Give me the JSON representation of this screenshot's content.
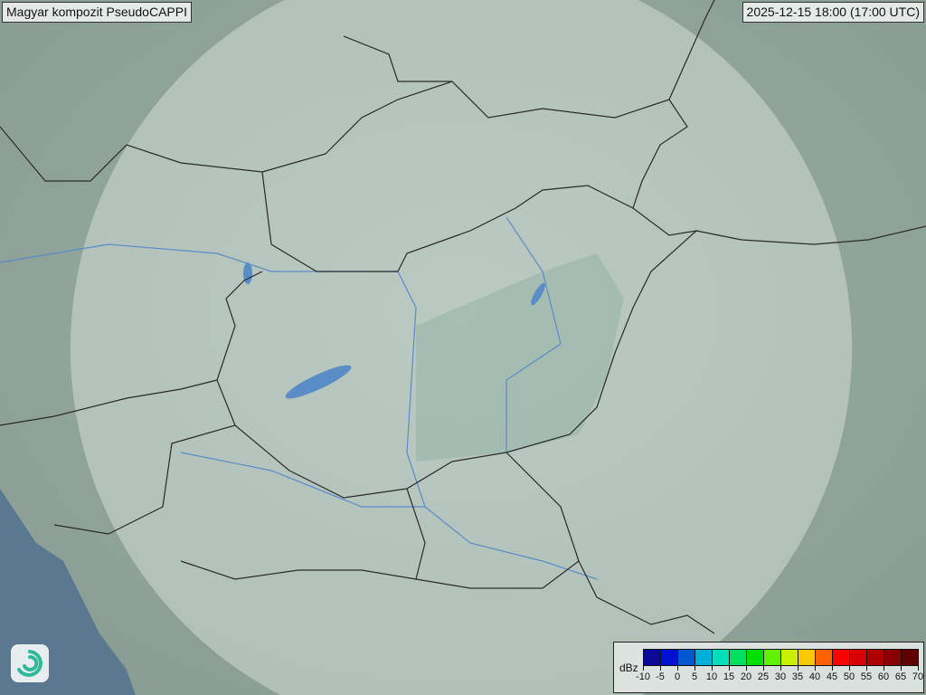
{
  "header": {
    "title": "Magyar kompozit  PseudoCAPPI",
    "timestamp": "2025-12-15 18:00 (17:00 UTC)"
  },
  "logo": {
    "icon": "swirl-logo-icon"
  },
  "legend": {
    "unit": "dBz",
    "ticks": [
      "-10",
      "-5",
      "0",
      "5",
      "10",
      "15",
      "20",
      "25",
      "30",
      "35",
      "40",
      "45",
      "50",
      "55",
      "60",
      "65",
      "70"
    ],
    "colors": [
      "#0a0a96",
      "#0010d0",
      "#0058d0",
      "#00b0d8",
      "#00e0b8",
      "#00e060",
      "#00e000",
      "#60f000",
      "#c8f000",
      "#f8c800",
      "#ff6000",
      "#ff0000",
      "#d80000",
      "#b00000",
      "#880000",
      "#600000"
    ]
  },
  "map": {
    "radar_echoes": [],
    "colors": {
      "land": "#8fa89e",
      "sea": "#5a7890",
      "coverage": "#d6e2dc",
      "border": "#2a2a2a",
      "river": "#5a8cc8"
    }
  }
}
